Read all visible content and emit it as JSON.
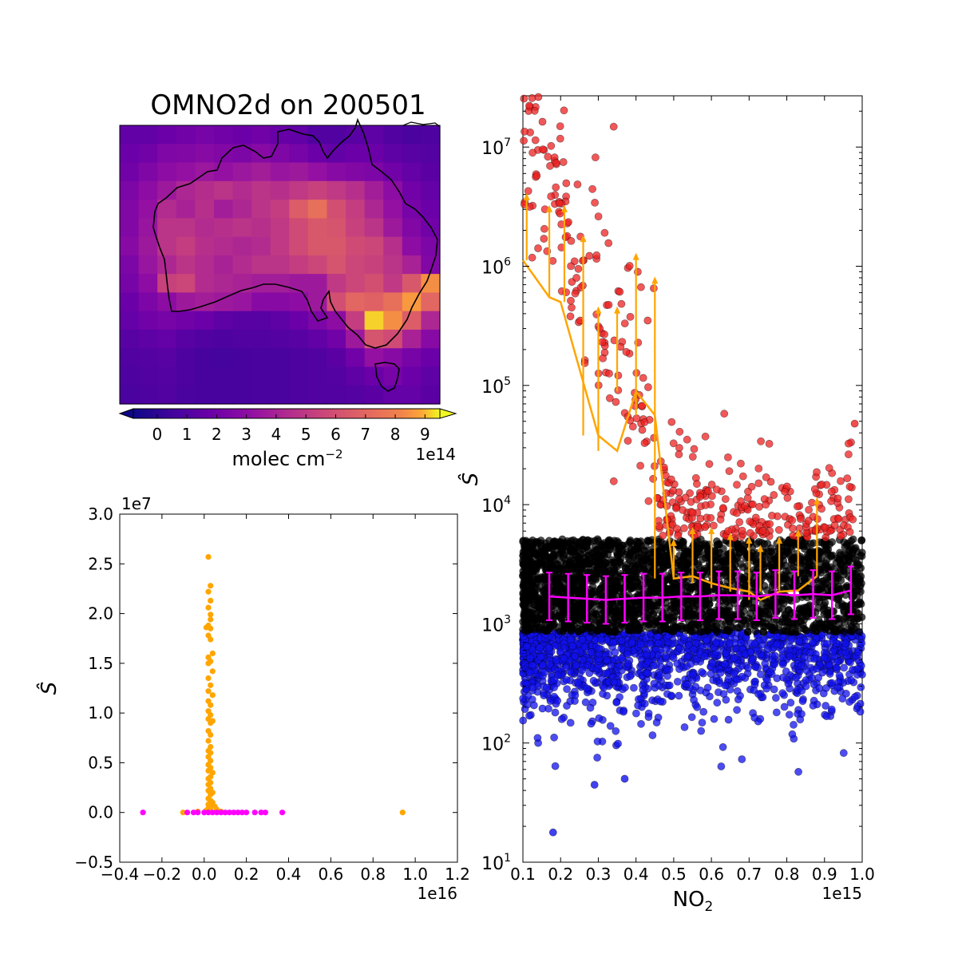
{
  "chart_data": [
    {
      "type": "heatmap",
      "title": "OMNO2d on 200501",
      "colorbar": {
        "label_main": "molec cm",
        "label_exp": "−2",
        "offset": "1e14",
        "ticks": [
          "0",
          "1",
          "2",
          "3",
          "4",
          "5",
          "6",
          "7",
          "8",
          "9"
        ],
        "range": [
          -0.8,
          9.5
        ],
        "colormap": "plasma",
        "extend": "both"
      },
      "grid_rows": 15,
      "grid_cols": 17,
      "grid_values": [
        [
          1.5,
          1.5,
          1.8,
          2.0,
          2.2,
          2.0,
          1.8,
          2.0,
          1.7,
          1.5,
          1.0,
          1.0,
          1.2,
          1.4,
          1.0,
          0.8,
          0.9
        ],
        [
          1.8,
          2.0,
          2.5,
          2.6,
          2.8,
          2.6,
          2.4,
          2.8,
          2.5,
          2.2,
          1.8,
          1.5,
          1.8,
          1.8,
          1.4,
          1.2,
          1.1
        ],
        [
          2.0,
          2.5,
          3.0,
          3.2,
          3.5,
          3.2,
          3.5,
          3.8,
          3.4,
          3.6,
          3.2,
          2.8,
          2.6,
          2.4,
          2.0,
          1.6,
          1.3
        ],
        [
          2.4,
          3.0,
          3.6,
          4.2,
          4.5,
          4.8,
          4.4,
          4.8,
          4.6,
          5.0,
          5.4,
          5.0,
          4.6,
          3.8,
          3.0,
          2.0,
          1.6
        ],
        [
          2.6,
          3.2,
          4.4,
          4.0,
          4.6,
          3.8,
          4.2,
          4.8,
          5.2,
          6.6,
          7.4,
          6.0,
          5.2,
          4.2,
          3.2,
          2.2,
          1.8
        ],
        [
          2.6,
          3.4,
          4.8,
          4.8,
          4.4,
          4.6,
          4.8,
          4.6,
          5.0,
          5.8,
          6.4,
          6.2,
          5.4,
          4.8,
          3.6,
          2.6,
          2.0
        ],
        [
          2.8,
          3.6,
          4.8,
          5.2,
          4.6,
          4.4,
          4.2,
          4.4,
          5.0,
          5.8,
          6.4,
          6.4,
          5.8,
          5.6,
          4.6,
          3.0,
          2.4
        ],
        [
          2.4,
          3.4,
          4.2,
          4.8,
          4.4,
          4.0,
          4.4,
          4.8,
          4.8,
          5.2,
          5.6,
          6.2,
          5.6,
          5.4,
          4.8,
          4.0,
          2.6
        ],
        [
          2.2,
          3.0,
          5.4,
          5.6,
          4.4,
          4.2,
          4.0,
          3.8,
          3.8,
          3.6,
          3.6,
          5.0,
          5.6,
          6.0,
          5.0,
          6.4,
          8.4
        ],
        [
          1.8,
          2.4,
          3.0,
          3.6,
          3.8,
          3.6,
          3.4,
          2.8,
          2.8,
          3.0,
          3.6,
          6.0,
          7.0,
          6.8,
          7.4,
          8.6,
          7.0
        ],
        [
          1.6,
          2.0,
          2.2,
          2.0,
          1.8,
          1.4,
          1.2,
          1.2,
          1.4,
          1.8,
          2.4,
          3.0,
          5.2,
          9.2,
          8.4,
          6.6,
          4.2
        ],
        [
          1.2,
          1.4,
          1.6,
          1.2,
          1.0,
          0.9,
          1.0,
          1.0,
          1.1,
          1.2,
          1.5,
          2.0,
          3.6,
          6.2,
          5.8,
          4.0,
          2.8
        ],
        [
          1.0,
          1.1,
          1.2,
          0.9,
          0.7,
          0.6,
          0.7,
          0.8,
          0.8,
          0.9,
          1.0,
          1.3,
          2.0,
          3.2,
          2.8,
          2.2,
          1.8
        ],
        [
          0.9,
          1.0,
          1.1,
          0.9,
          0.7,
          0.7,
          0.7,
          0.8,
          0.8,
          0.9,
          1.0,
          1.1,
          1.4,
          1.8,
          2.2,
          1.8,
          1.4
        ],
        [
          0.8,
          0.9,
          1.0,
          0.8,
          0.7,
          0.7,
          0.7,
          0.8,
          0.8,
          0.9,
          1.0,
          1.0,
          1.1,
          1.3,
          1.6,
          1.6,
          1.3
        ]
      ]
    },
    {
      "type": "scatter",
      "xlabel": "",
      "ylabel": "Ŝ",
      "x_offset": "1e16",
      "y_offset": "1e7",
      "xlim": [
        -0.4,
        1.2
      ],
      "ylim": [
        -0.5,
        3.0
      ],
      "xticks": [
        "−0.4",
        "−0.2",
        "0.0",
        "0.2",
        "0.4",
        "0.6",
        "0.8",
        "1.0",
        "1.2"
      ],
      "yticks": [
        "−0.5",
        "0.0",
        "0.5",
        "1.0",
        "1.5",
        "2.0",
        "2.5",
        "3.0"
      ],
      "series": [
        {
          "color": "#ffa500",
          "points": [
            [
              0.02,
              2.57
            ],
            [
              0.03,
              2.28
            ],
            [
              0.02,
              2.22
            ],
            [
              0.03,
              2.13
            ],
            [
              0.02,
              2.06
            ],
            [
              0.03,
              1.99
            ],
            [
              0.03,
              1.94
            ],
            [
              0.02,
              1.88
            ],
            [
              0.01,
              1.86
            ],
            [
              0.03,
              1.85
            ],
            [
              0.02,
              1.78
            ],
            [
              0.03,
              1.74
            ],
            [
              0.04,
              1.6
            ],
            [
              0.02,
              1.56
            ],
            [
              0.03,
              1.52
            ],
            [
              0.02,
              1.5
            ],
            [
              0.04,
              1.42
            ],
            [
              0.02,
              1.35
            ],
            [
              0.03,
              1.28
            ],
            [
              0.02,
              1.22
            ],
            [
              0.04,
              1.18
            ],
            [
              0.02,
              1.12
            ],
            [
              0.03,
              1.08
            ],
            [
              0.02,
              1.02
            ],
            [
              0.03,
              0.98
            ],
            [
              0.02,
              0.94
            ],
            [
              0.04,
              0.92
            ],
            [
              0.03,
              0.9
            ],
            [
              0.02,
              0.82
            ],
            [
              0.03,
              0.78
            ],
            [
              0.02,
              0.72
            ],
            [
              0.03,
              0.66
            ],
            [
              0.02,
              0.62
            ],
            [
              0.03,
              0.6
            ],
            [
              0.02,
              0.56
            ],
            [
              0.03,
              0.52
            ],
            [
              0.02,
              0.48
            ],
            [
              0.03,
              0.45
            ],
            [
              0.02,
              0.42
            ],
            [
              0.04,
              0.4
            ],
            [
              0.03,
              0.36
            ],
            [
              0.02,
              0.34
            ],
            [
              0.03,
              0.3
            ],
            [
              0.02,
              0.28
            ],
            [
              0.03,
              0.24
            ],
            [
              0.02,
              0.22
            ],
            [
              0.04,
              0.2
            ],
            [
              0.03,
              0.18
            ],
            [
              0.02,
              0.14
            ],
            [
              0.03,
              0.12
            ],
            [
              0.04,
              0.1
            ],
            [
              0.02,
              0.08
            ],
            [
              0.05,
              0.06
            ],
            [
              0.03,
              0.05
            ],
            [
              0.02,
              0.04
            ],
            [
              0.06,
              0.03
            ],
            [
              0.01,
              0.02
            ],
            [
              -0.1,
              0.0
            ],
            [
              0.94,
              0.0
            ],
            [
              0.08,
              0.01
            ],
            [
              -0.03,
              0.01
            ]
          ]
        },
        {
          "color": "#ff00ff",
          "points": [
            [
              -0.29,
              0.0
            ],
            [
              -0.08,
              0.0
            ],
            [
              -0.05,
              0.0
            ],
            [
              -0.03,
              0.0
            ],
            [
              0.0,
              0.0
            ],
            [
              0.02,
              0.0
            ],
            [
              0.04,
              0.0
            ],
            [
              0.06,
              0.0
            ],
            [
              0.08,
              0.0
            ],
            [
              0.1,
              0.0
            ],
            [
              0.12,
              0.0
            ],
            [
              0.14,
              0.0
            ],
            [
              0.16,
              0.0
            ],
            [
              0.18,
              0.0
            ],
            [
              0.2,
              0.0
            ],
            [
              0.24,
              0.0
            ],
            [
              0.27,
              0.0
            ],
            [
              0.29,
              0.0
            ],
            [
              0.37,
              0.0
            ]
          ]
        }
      ]
    },
    {
      "type": "scatter",
      "xlabel_main": "NO",
      "xlabel_sub": "2",
      "ylabel": "Ŝ",
      "x_offset": "1e15",
      "xlim": [
        0.1,
        1.0
      ],
      "ylim_log": [
        1,
        7.43
      ],
      "yscale": "log",
      "xticks": [
        "0.1",
        "0.2",
        "0.3",
        "0.4",
        "0.5",
        "0.6",
        "0.7",
        "0.8",
        "0.9",
        "1.0"
      ],
      "yticks": [
        {
          "base": "10",
          "exp": "1"
        },
        {
          "base": "10",
          "exp": "2"
        },
        {
          "base": "10",
          "exp": "3"
        },
        {
          "base": "10",
          "exp": "4"
        },
        {
          "base": "10",
          "exp": "5"
        },
        {
          "base": "10",
          "exp": "6"
        },
        {
          "base": "10",
          "exp": "7"
        }
      ],
      "point_colors": {
        "high": "#ee2020",
        "mid": "#000000",
        "low": "#1010ee"
      },
      "orange_line": {
        "color": "#ffa500",
        "points": [
          [
            0.1,
            6.05
          ],
          [
            0.17,
            5.74
          ],
          [
            0.2,
            5.7
          ],
          [
            0.3,
            4.58
          ],
          [
            0.35,
            4.45
          ],
          [
            0.4,
            4.95
          ],
          [
            0.45,
            4.75
          ],
          [
            0.5,
            3.38
          ],
          [
            0.55,
            3.4
          ],
          [
            0.6,
            3.34
          ],
          [
            0.65,
            3.3
          ],
          [
            0.7,
            3.27
          ],
          [
            0.73,
            3.2
          ],
          [
            0.78,
            3.27
          ],
          [
            0.83,
            3.28
          ],
          [
            0.88,
            3.4
          ]
        ],
        "arrows": [
          [
            0.11,
            6.6
          ],
          [
            0.17,
            6.5
          ],
          [
            0.21,
            6.5
          ],
          [
            0.26,
            6.25
          ],
          [
            0.3,
            5.65
          ],
          [
            0.35,
            5.65
          ],
          [
            0.4,
            6.1
          ],
          [
            0.45,
            5.9
          ],
          [
            0.5,
            3.7
          ],
          [
            0.55,
            3.8
          ],
          [
            0.6,
            3.8
          ],
          [
            0.65,
            3.75
          ],
          [
            0.7,
            3.72
          ],
          [
            0.73,
            3.65
          ],
          [
            0.78,
            3.72
          ],
          [
            0.83,
            3.78
          ],
          [
            0.88,
            4.05
          ]
        ]
      },
      "magenta_line": {
        "color": "#ff00ff",
        "points": [
          [
            0.17,
            3.23
          ],
          [
            0.22,
            3.22
          ],
          [
            0.27,
            3.21
          ],
          [
            0.32,
            3.2
          ],
          [
            0.37,
            3.21
          ],
          [
            0.42,
            3.22
          ],
          [
            0.47,
            3.22
          ],
          [
            0.52,
            3.23
          ],
          [
            0.57,
            3.23
          ],
          [
            0.62,
            3.24
          ],
          [
            0.67,
            3.24
          ],
          [
            0.72,
            3.23
          ],
          [
            0.77,
            3.25
          ],
          [
            0.82,
            3.24
          ],
          [
            0.87,
            3.25
          ],
          [
            0.92,
            3.24
          ],
          [
            0.97,
            3.28
          ]
        ],
        "err": 0.2
      }
    }
  ]
}
